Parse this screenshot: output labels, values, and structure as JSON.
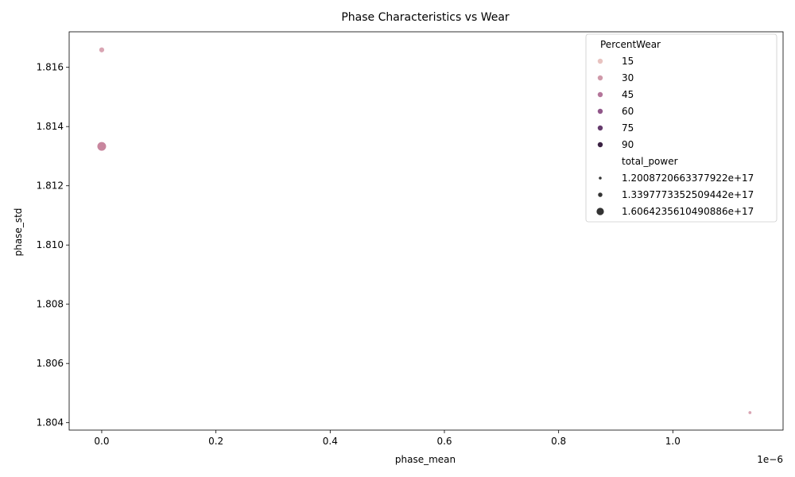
{
  "chart_data": {
    "type": "scatter",
    "title": "Phase Characteristics vs Wear",
    "xlabel": "phase_mean",
    "ylabel": "phase_std",
    "x_offset_text": "1e−6",
    "xlim": [
      -5.7e-08,
      1.193e-06
    ],
    "ylim": [
      1.80375,
      1.8172
    ],
    "x_ticks": [
      {
        "value": 0.0,
        "label": "0.0"
      },
      {
        "value": 2e-07,
        "label": "0.2"
      },
      {
        "value": 4e-07,
        "label": "0.4"
      },
      {
        "value": 6e-07,
        "label": "0.6"
      },
      {
        "value": 8e-07,
        "label": "0.8"
      },
      {
        "value": 1e-06,
        "label": "1.0"
      }
    ],
    "y_ticks": [
      {
        "value": 1.804,
        "label": "1.804"
      },
      {
        "value": 1.806,
        "label": "1.806"
      },
      {
        "value": 1.808,
        "label": "1.808"
      },
      {
        "value": 1.81,
        "label": "1.810"
      },
      {
        "value": 1.812,
        "label": "1.812"
      },
      {
        "value": 1.814,
        "label": "1.814"
      },
      {
        "value": 1.816,
        "label": "1.816"
      }
    ],
    "grid": false,
    "legend_placement": "top-right",
    "points": [
      {
        "phase_mean": 0.0,
        "phase_std": 1.81659,
        "PercentWear": 25,
        "total_power": 1.3397773352509442e+17,
        "color": "#d9a5b3"
      },
      {
        "phase_mean": 0.0,
        "phase_std": 1.81333,
        "PercentWear": 35,
        "total_power": 1.6064235610490886e+17,
        "color": "#c8869e"
      },
      {
        "phase_mean": 1.135e-06,
        "phase_std": 1.80434,
        "PercentWear": 25,
        "total_power": 1.2008720663377922e+17,
        "color": "#d9a5b3"
      }
    ],
    "legend": {
      "hue_title": "PercentWear",
      "hue_entries": [
        {
          "label": "15",
          "color": "#e8c3c0"
        },
        {
          "label": "30",
          "color": "#d09aaa"
        },
        {
          "label": "45",
          "color": "#b4769a"
        },
        {
          "label": "60",
          "color": "#91578a"
        },
        {
          "label": "75",
          "color": "#653b6d"
        },
        {
          "label": "90",
          "color": "#3a2142"
        }
      ],
      "size_title": "total_power",
      "size_entries": [
        {
          "label": "1.2008720663377922e+17",
          "size": 1.2008720663377922e+17
        },
        {
          "label": "1.3397773352509442e+17",
          "size": 1.3397773352509442e+17
        },
        {
          "label": "1.6064235610490886e+17",
          "size": 1.6064235610490886e+17
        }
      ]
    }
  }
}
